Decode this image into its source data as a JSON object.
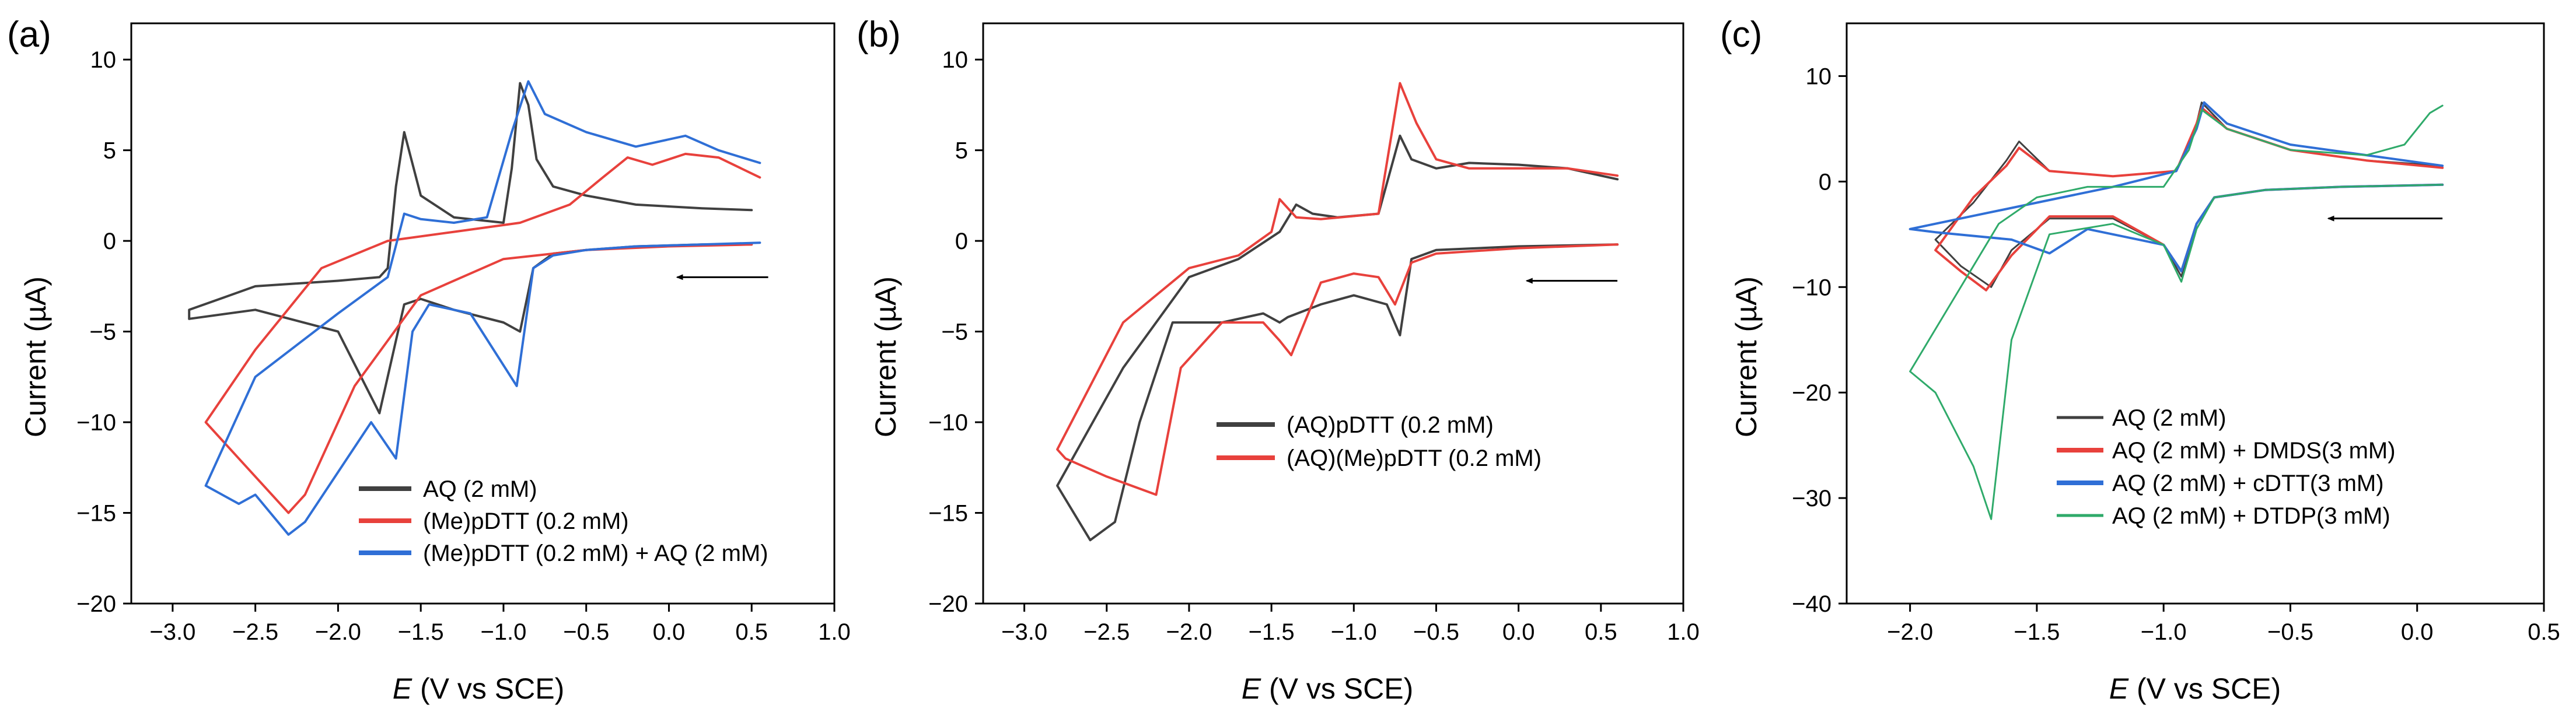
{
  "figure_xlabel_var": "E",
  "chart_data": [
    {
      "type": "line",
      "panel": "(a)",
      "xlabel_var": "E",
      "xlabel_rest": " (V vs SCE)",
      "ylabel": "Current (µA)",
      "xlim": [
        -3.25,
        1.0
      ],
      "ylim": [
        -20,
        12
      ],
      "xticks": [
        -3.0,
        -2.5,
        -2.0,
        -1.5,
        -1.0,
        -0.5,
        0.0,
        0.5,
        1.0
      ],
      "xtick_labels": [
        "−3.0",
        "−2.5",
        "−2.0",
        "−1.5",
        "−1.0",
        "−0.5",
        "0.0",
        "0.5",
        "1.0"
      ],
      "yticks": [
        -20,
        -15,
        -10,
        -5,
        0,
        5,
        10
      ],
      "ytick_labels": [
        "−20",
        "−15",
        "−10",
        "−5",
        "0",
        "5",
        "10"
      ],
      "legend_position": "lower-right",
      "arrow": {
        "from": [
          0.6,
          -2.0
        ],
        "to": [
          0.05,
          -2.0
        ]
      },
      "series": [
        {
          "name": "AQ (2 mM)",
          "color": "#404040",
          "x": [
            0.5,
            0.2,
            -0.2,
            -0.5,
            -0.7,
            -0.82,
            -0.9,
            -1.0,
            -1.3,
            -1.5,
            -1.6,
            -1.65,
            -1.75,
            -2.0,
            -2.5,
            -2.9,
            -2.9,
            -2.5,
            -2.0,
            -1.75,
            -1.7,
            -1.65,
            -1.6,
            -1.5,
            -1.3,
            -1.0,
            -0.95,
            -0.9,
            -0.85,
            -0.8,
            -0.7,
            -0.5,
            -0.2,
            0.2,
            0.5
          ],
          "y": [
            -0.2,
            -0.2,
            -0.3,
            -0.5,
            -0.7,
            -1.5,
            -5.0,
            -4.5,
            -3.8,
            -3.2,
            -3.5,
            -5.5,
            -9.5,
            -5.0,
            -3.8,
            -4.3,
            -3.8,
            -2.5,
            -2.2,
            -2.0,
            -1.5,
            3.0,
            6.0,
            2.5,
            1.3,
            1.0,
            4.0,
            8.7,
            7.5,
            4.5,
            3.0,
            2.5,
            2.0,
            1.8,
            1.7
          ]
        },
        {
          "name": "(Me)pDTT (0.2 mM)",
          "color": "#e8413c",
          "x": [
            0.5,
            0.0,
            -0.5,
            -1.0,
            -1.5,
            -1.9,
            -2.2,
            -2.3,
            -2.6,
            -2.8,
            -2.8,
            -2.5,
            -2.1,
            -1.7,
            -1.3,
            -0.9,
            -0.6,
            -0.4,
            -0.25,
            -0.1,
            0.0,
            0.1,
            0.3,
            0.55
          ],
          "y": [
            -0.2,
            -0.3,
            -0.5,
            -1.0,
            -3.0,
            -8.0,
            -14.0,
            -15.0,
            -12.0,
            -10.0,
            -10.0,
            -6.0,
            -1.5,
            0.0,
            0.5,
            1.0,
            2.0,
            3.5,
            4.6,
            4.2,
            4.5,
            4.8,
            4.6,
            3.5
          ]
        },
        {
          "name": "(Me)pDTT (0.2 mM) + AQ (2 mM)",
          "color": "#2f6fd6",
          "x": [
            0.55,
            0.2,
            -0.2,
            -0.5,
            -0.7,
            -0.82,
            -0.92,
            -1.2,
            -1.45,
            -1.55,
            -1.65,
            -1.8,
            -2.2,
            -2.3,
            -2.5,
            -2.6,
            -2.8,
            -2.8,
            -2.5,
            -2.0,
            -1.7,
            -1.6,
            -1.5,
            -1.3,
            -1.1,
            -0.95,
            -0.85,
            -0.75,
            -0.5,
            -0.2,
            0.1,
            0.3,
            0.55
          ],
          "y": [
            -0.1,
            -0.2,
            -0.3,
            -0.5,
            -0.8,
            -1.5,
            -8.0,
            -4.0,
            -3.5,
            -5.0,
            -12.0,
            -10.0,
            -15.5,
            -16.2,
            -14.0,
            -14.5,
            -13.5,
            -13.5,
            -7.5,
            -4.0,
            -2.0,
            1.5,
            1.2,
            1.0,
            1.3,
            6.0,
            8.8,
            7.0,
            6.0,
            5.2,
            5.8,
            5.0,
            4.3
          ]
        }
      ]
    },
    {
      "type": "line",
      "panel": "(b)",
      "xlabel_var": "E",
      "xlabel_rest": " (V vs SCE)",
      "ylabel": "Current (µA)",
      "xlim": [
        -3.25,
        1.0
      ],
      "ylim": [
        -20,
        12
      ],
      "xticks": [
        -3.0,
        -2.5,
        -2.0,
        -1.5,
        -1.0,
        -0.5,
        0.0,
        0.5,
        1.0
      ],
      "xtick_labels": [
        "−3.0",
        "−2.5",
        "−2.0",
        "−1.5",
        "−1.0",
        "−0.5",
        "0.0",
        "0.5",
        "1.0"
      ],
      "yticks": [
        -20,
        -15,
        -10,
        -5,
        0,
        5,
        10
      ],
      "ytick_labels": [
        "−20",
        "−15",
        "−10",
        "−5",
        "0",
        "5",
        "10"
      ],
      "legend_position": "middle-right",
      "arrow": {
        "from": [
          0.6,
          -2.2
        ],
        "to": [
          0.05,
          -2.2
        ]
      },
      "series": [
        {
          "name": "(AQ)pDTT (0.2 mM)",
          "color": "#404040",
          "x": [
            0.6,
            0.0,
            -0.5,
            -0.65,
            -0.72,
            -0.8,
            -1.0,
            -1.2,
            -1.4,
            -1.45,
            -1.55,
            -1.8,
            -2.1,
            -2.3,
            -2.45,
            -2.6,
            -2.8,
            -2.8,
            -2.4,
            -2.0,
            -1.7,
            -1.45,
            -1.35,
            -1.25,
            -1.1,
            -0.85,
            -0.72,
            -0.65,
            -0.5,
            -0.3,
            0.0,
            0.3,
            0.6
          ],
          "y": [
            -0.2,
            -0.3,
            -0.5,
            -1.0,
            -5.2,
            -3.5,
            -3.0,
            -3.5,
            -4.2,
            -4.5,
            -4.0,
            -4.5,
            -4.5,
            -10.0,
            -15.5,
            -16.5,
            -13.5,
            -13.5,
            -7.0,
            -2.0,
            -1.0,
            0.5,
            2.0,
            1.5,
            1.3,
            1.5,
            5.8,
            4.5,
            4.0,
            4.3,
            4.2,
            4.0,
            3.4
          ]
        },
        {
          "name": "(AQ)(Me)pDTT (0.2 mM)",
          "color": "#e8413c",
          "x": [
            0.6,
            0.0,
            -0.5,
            -0.65,
            -0.75,
            -0.85,
            -1.0,
            -1.2,
            -1.38,
            -1.45,
            -1.55,
            -1.8,
            -2.05,
            -2.2,
            -2.5,
            -2.75,
            -2.8,
            -2.8,
            -2.4,
            -2.0,
            -1.7,
            -1.5,
            -1.45,
            -1.35,
            -1.2,
            -0.85,
            -0.72,
            -0.62,
            -0.5,
            -0.3,
            0.0,
            0.3,
            0.6
          ],
          "y": [
            -0.2,
            -0.4,
            -0.7,
            -1.2,
            -3.5,
            -2.0,
            -1.8,
            -2.3,
            -6.3,
            -5.5,
            -4.5,
            -4.5,
            -7.0,
            -14.0,
            -13.0,
            -12.0,
            -11.5,
            -11.5,
            -4.5,
            -1.5,
            -0.8,
            0.5,
            2.3,
            1.3,
            1.2,
            1.5,
            8.7,
            6.5,
            4.5,
            4.0,
            4.0,
            4.0,
            3.6
          ]
        }
      ]
    },
    {
      "type": "line",
      "panel": "(c)",
      "xlabel_var": "E",
      "xlabel_rest": " (V vs SCE)",
      "ylabel": "Current (µA)",
      "xlim": [
        -2.25,
        0.5
      ],
      "ylim": [
        -40,
        15
      ],
      "xticks": [
        -2.0,
        -1.5,
        -1.0,
        -0.5,
        0.0,
        0.5
      ],
      "xtick_labels": [
        "−2.0",
        "−1.5",
        "−1.0",
        "−0.5",
        "0.0",
        "0.5"
      ],
      "yticks": [
        -40,
        -30,
        -20,
        -10,
        0,
        10
      ],
      "ytick_labels": [
        "−40",
        "−30",
        "−20",
        "−10",
        "0",
        "10"
      ],
      "legend_position": "lower-right",
      "arrow": {
        "from": [
          0.1,
          -3.5
        ],
        "to": [
          -0.35,
          -3.5
        ]
      },
      "series": [
        {
          "name": "AQ (2 mM)",
          "color": "#404040",
          "x": [
            0.1,
            -0.3,
            -0.6,
            -0.8,
            -0.87,
            -0.93,
            -1.0,
            -1.2,
            -1.45,
            -1.6,
            -1.68,
            -1.8,
            -1.9,
            -1.9,
            -1.75,
            -1.62,
            -1.57,
            -1.45,
            -1.2,
            -0.95,
            -0.87,
            -0.85,
            -0.75,
            -0.5,
            -0.2,
            0.1
          ],
          "y": [
            -0.3,
            -0.5,
            -0.8,
            -1.5,
            -4.0,
            -9.0,
            -6.0,
            -3.5,
            -3.5,
            -6.5,
            -10.0,
            -8.0,
            -5.5,
            -5.5,
            -2.0,
            2.0,
            3.8,
            1.0,
            0.5,
            1.0,
            5.5,
            7.5,
            5.0,
            3.0,
            2.0,
            1.5
          ]
        },
        {
          "name": "AQ (2 mM) + DMDS(3 mM)",
          "color": "#e8413c",
          "x": [
            0.1,
            -0.3,
            -0.6,
            -0.8,
            -0.87,
            -0.93,
            -1.0,
            -1.2,
            -1.45,
            -1.6,
            -1.7,
            -1.8,
            -1.9,
            -1.9,
            -1.75,
            -1.62,
            -1.57,
            -1.45,
            -1.2,
            -0.95,
            -0.87,
            -0.85,
            -0.75,
            -0.5,
            -0.2,
            0.1
          ],
          "y": [
            -0.3,
            -0.5,
            -0.8,
            -1.5,
            -4.0,
            -8.5,
            -6.0,
            -3.3,
            -3.3,
            -7.0,
            -10.3,
            -8.5,
            -6.5,
            -6.5,
            -1.5,
            1.5,
            3.2,
            1.0,
            0.5,
            1.0,
            5.5,
            7.0,
            5.0,
            3.0,
            2.0,
            1.3
          ]
        },
        {
          "name": "AQ (2 mM) + cDTT(3 mM)",
          "color": "#2f6fd6",
          "x": [
            0.1,
            -0.3,
            -0.6,
            -0.8,
            -0.87,
            -0.93,
            -1.0,
            -1.3,
            -1.45,
            -1.6,
            -1.9,
            -2.0,
            -2.0,
            -1.7,
            -1.4,
            -1.2,
            -0.95,
            -0.87,
            -0.84,
            -0.75,
            -0.5,
            -0.2,
            0.1
          ],
          "y": [
            -0.3,
            -0.5,
            -0.8,
            -1.5,
            -4.0,
            -8.5,
            -6.0,
            -4.5,
            -6.8,
            -5.5,
            -4.8,
            -4.5,
            -4.5,
            -3.0,
            -1.5,
            -0.5,
            1.0,
            5.0,
            7.5,
            5.5,
            3.5,
            2.5,
            1.5
          ]
        },
        {
          "name": "AQ (2 mM) + DTDP(3 mM)",
          "color": "#2faa6a",
          "x": [
            0.1,
            -0.3,
            -0.6,
            -0.8,
            -0.87,
            -0.93,
            -1.0,
            -1.2,
            -1.45,
            -1.6,
            -1.68,
            -1.75,
            -1.9,
            -2.0,
            -2.0,
            -1.8,
            -1.65,
            -1.5,
            -1.3,
            -1.0,
            -0.9,
            -0.85,
            -0.75,
            -0.5,
            -0.2,
            -0.05,
            0.05,
            0.1
          ],
          "y": [
            -0.3,
            -0.5,
            -0.8,
            -1.5,
            -4.5,
            -9.5,
            -6.0,
            -4.0,
            -5.0,
            -15.0,
            -32.0,
            -27.0,
            -20.0,
            -18.0,
            -18.0,
            -10.0,
            -4.0,
            -1.5,
            -0.5,
            -0.5,
            3.0,
            6.8,
            5.0,
            3.0,
            2.5,
            3.5,
            6.5,
            7.2
          ]
        }
      ]
    }
  ]
}
